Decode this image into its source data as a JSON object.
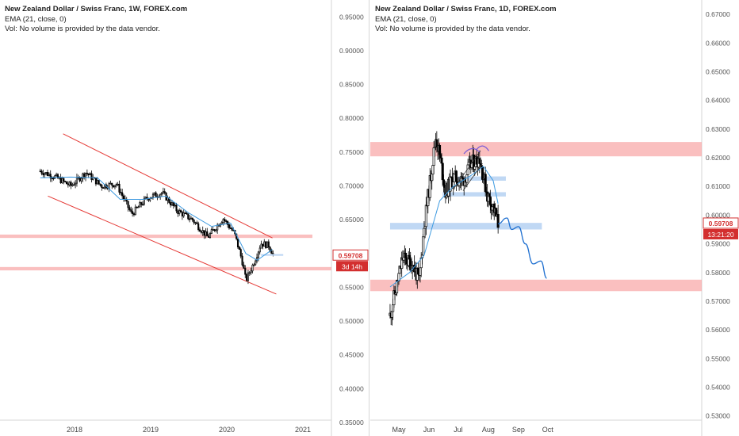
{
  "colors": {
    "up_candle": "#ffffff",
    "down_candle": "#000000",
    "candle_outline": "#000000",
    "ema": "#3d9ae0",
    "channel": "#e53935",
    "support_zone": "#f8a9a9",
    "minor_zone": "#b9d4f3",
    "price_badge": "#d32f2f",
    "projection": "#1e6fd0",
    "arc": "#7b5cd6"
  },
  "left": {
    "legend": {
      "title": "New Zealand Dollar / Swiss Franc, 1W, FOREX.com",
      "ema": "EMA (21, close, 0)",
      "vol": "Vol: No volume is provided by the data vendor."
    },
    "price_badge": "0.59708",
    "countdown_badge": "3d 14h",
    "y_ticks": [
      "0.95000",
      "0.90000",
      "0.85000",
      "0.80000",
      "0.75000",
      "0.70000",
      "0.65000",
      "0.55000",
      "0.50000",
      "0.45000",
      "0.40000",
      "0.35000"
    ],
    "x_ticks": [
      "2018",
      "2019",
      "2020",
      "2021"
    ]
  },
  "right": {
    "legend": {
      "title": "New Zealand Dollar / Swiss Franc, 1D, FOREX.com",
      "ema": "EMA (21, close, 0)",
      "vol": "Vol: No volume is provided by the data vendor."
    },
    "price_badge": "0.59708",
    "countdown_badge": "13:21:20",
    "y_ticks": [
      "0.67000",
      "0.66000",
      "0.65000",
      "0.64000",
      "0.63000",
      "0.62000",
      "0.61000",
      "0.60000",
      "0.59000",
      "0.58000",
      "0.57000",
      "0.56000",
      "0.55000",
      "0.54000",
      "0.53000"
    ],
    "x_ticks": [
      "May",
      "Jun",
      "Jul",
      "Aug",
      "Sep",
      "Oct"
    ]
  },
  "chart_data": [
    {
      "type": "candlestick",
      "timeframe": "1W",
      "title": "New Zealand Dollar / Swiss Franc, 1W, FOREX.com",
      "x_ticks": [
        "2018",
        "2019",
        "2020",
        "2021"
      ],
      "ylim": [
        0.33,
        0.975
      ],
      "close_path": [
        {
          "t": 2017.55,
          "c": 0.722
        },
        {
          "t": 2017.75,
          "c": 0.713
        },
        {
          "t": 2017.95,
          "c": 0.7
        },
        {
          "t": 2018.15,
          "c": 0.72
        },
        {
          "t": 2018.35,
          "c": 0.7
        },
        {
          "t": 2018.55,
          "c": 0.703
        },
        {
          "t": 2018.75,
          "c": 0.658
        },
        {
          "t": 2018.95,
          "c": 0.682
        },
        {
          "t": 2019.15,
          "c": 0.69
        },
        {
          "t": 2019.35,
          "c": 0.663
        },
        {
          "t": 2019.55,
          "c": 0.65
        },
        {
          "t": 2019.75,
          "c": 0.624
        },
        {
          "t": 2019.95,
          "c": 0.652
        },
        {
          "t": 2020.1,
          "c": 0.63
        },
        {
          "t": 2020.2,
          "c": 0.59
        },
        {
          "t": 2020.25,
          "c": 0.56
        },
        {
          "t": 2020.35,
          "c": 0.585
        },
        {
          "t": 2020.45,
          "c": 0.615
        },
        {
          "t": 2020.55,
          "c": 0.612
        },
        {
          "t": 2020.62,
          "c": 0.597
        }
      ],
      "ema_path": [
        {
          "t": 2017.55,
          "v": 0.712
        },
        {
          "t": 2017.95,
          "v": 0.713
        },
        {
          "t": 2018.3,
          "v": 0.712
        },
        {
          "t": 2018.6,
          "v": 0.68
        },
        {
          "t": 2018.9,
          "v": 0.68
        },
        {
          "t": 2019.2,
          "v": 0.685
        },
        {
          "t": 2019.5,
          "v": 0.66
        },
        {
          "t": 2019.8,
          "v": 0.64
        },
        {
          "t": 2020.05,
          "v": 0.645
        },
        {
          "t": 2020.25,
          "v": 0.6
        },
        {
          "t": 2020.4,
          "v": 0.59
        },
        {
          "t": 2020.6,
          "v": 0.606
        }
      ],
      "channel_lines": [
        {
          "from": {
            "t": 2017.85,
            "v": 0.777
          },
          "to": {
            "t": 2020.6,
            "v": 0.623
          }
        },
        {
          "from": {
            "t": 2017.65,
            "v": 0.685
          },
          "to": {
            "t": 2020.65,
            "v": 0.54
          }
        }
      ],
      "zones": [
        {
          "from": 0.628,
          "to": 0.623
        },
        {
          "from": 0.58,
          "to": 0.575
        }
      ],
      "last_price": 0.59708
    },
    {
      "type": "candlestick",
      "timeframe": "1D",
      "title": "New Zealand Dollar / Swiss Franc, 1D, FOREX.com",
      "x_ticks": [
        "May",
        "Jun",
        "Jul",
        "Aug",
        "Sep",
        "Oct"
      ],
      "ylim": [
        0.523,
        0.675
      ],
      "close_path": [
        {
          "d": "Apr 22",
          "c": 0.565
        },
        {
          "d": "May 05",
          "c": 0.585
        },
        {
          "d": "May 15",
          "c": 0.583
        },
        {
          "d": "May 22",
          "c": 0.577
        },
        {
          "d": "May 27",
          "c": 0.596
        },
        {
          "d": "Jun 03",
          "c": 0.614
        },
        {
          "d": "Jun 08",
          "c": 0.627
        },
        {
          "d": "Jun 12",
          "c": 0.621
        },
        {
          "d": "Jun 18",
          "c": 0.608
        },
        {
          "d": "Jun 26",
          "c": 0.613
        },
        {
          "d": "Jul 06",
          "c": 0.612
        },
        {
          "d": "Jul 15",
          "c": 0.618
        },
        {
          "d": "Jul 23",
          "c": 0.62
        },
        {
          "d": "Jul 31",
          "c": 0.607
        },
        {
          "d": "Aug 06",
          "c": 0.603
        },
        {
          "d": "Aug 11",
          "c": 0.597
        }
      ],
      "ema_path": [
        {
          "d": "Apr 22",
          "v": 0.575
        },
        {
          "d": "May 12",
          "v": 0.58
        },
        {
          "d": "May 27",
          "v": 0.586
        },
        {
          "d": "Jun 12",
          "v": 0.605
        },
        {
          "d": "Jun 26",
          "v": 0.61
        },
        {
          "d": "Jul 15",
          "v": 0.614
        },
        {
          "d": "Jul 27",
          "v": 0.617
        },
        {
          "d": "Aug 06",
          "v": 0.612
        },
        {
          "d": "Aug 11",
          "v": 0.604
        }
      ],
      "projection_path": [
        {
          "d": "Aug 11",
          "v": 0.597
        },
        {
          "d": "Aug 20",
          "v": 0.599
        },
        {
          "d": "Aug 25",
          "v": 0.595
        },
        {
          "d": "Sep 01",
          "v": 0.596
        },
        {
          "d": "Sep 08",
          "v": 0.59
        },
        {
          "d": "Sep 16",
          "v": 0.583
        },
        {
          "d": "Sep 24",
          "v": 0.584
        },
        {
          "d": "Sep 30",
          "v": 0.578
        }
      ],
      "zones": [
        {
          "from": 0.6255,
          "to": 0.6205,
          "kind": "major"
        },
        {
          "from": 0.5775,
          "to": 0.5735,
          "kind": "major"
        },
        {
          "from": 0.6135,
          "to": 0.612,
          "kind": "minor"
        },
        {
          "from": 0.608,
          "to": 0.6065,
          "kind": "minor"
        },
        {
          "from": 0.5973,
          "to": 0.595,
          "kind": "minor"
        }
      ],
      "last_price": 0.59708
    }
  ]
}
